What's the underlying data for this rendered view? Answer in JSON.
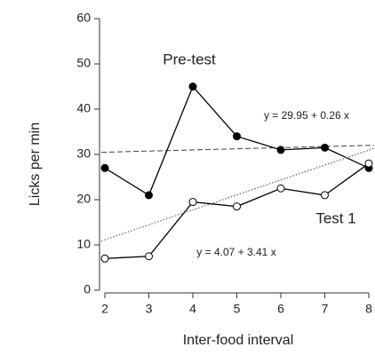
{
  "chart_data": {
    "type": "line",
    "xlabel": "Inter-food interval",
    "ylabel": "Licks per min",
    "x": [
      2,
      3,
      4,
      5,
      6,
      7,
      8
    ],
    "series": [
      {
        "name": "Pre-test",
        "color": "#000000",
        "marker": "filled",
        "values": [
          27,
          21,
          45,
          34,
          31,
          31.5,
          27
        ],
        "fit": {
          "intercept": 29.95,
          "slope": 0.26,
          "label": "y = 29.95 + 0.26 x",
          "style": "dashed"
        }
      },
      {
        "name": "Test 1",
        "color": "#000000",
        "marker": "open",
        "values": [
          7,
          7.5,
          19.5,
          18.5,
          22.5,
          21,
          28
        ],
        "fit": {
          "intercept": 4.07,
          "slope": 3.41,
          "label": "y = 4.07 + 3.41 x",
          "style": "dotted"
        }
      }
    ],
    "xlim": [
      2,
      8
    ],
    "xticks": [
      2,
      3,
      4,
      5,
      6,
      7,
      8
    ],
    "ylim": [
      0,
      60
    ],
    "yticks": [
      0,
      10,
      20,
      30,
      40,
      50,
      60
    ]
  }
}
